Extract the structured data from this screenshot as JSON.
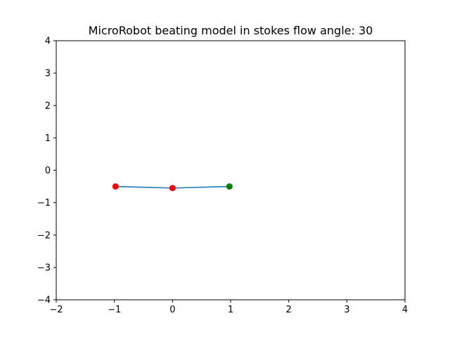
{
  "chart_data": {
    "type": "scatter",
    "title": "MicroRobot beating model in stokes flow angle: 30",
    "xlabel": "",
    "ylabel": "",
    "xlim": [
      -2,
      4
    ],
    "ylim": [
      -4,
      4
    ],
    "xticks": [
      -2,
      -1,
      0,
      1,
      2,
      3,
      4
    ],
    "yticks": [
      -4,
      -3,
      -2,
      -1,
      0,
      1,
      2,
      3,
      4
    ],
    "grid": false,
    "series": [
      {
        "kind": "line",
        "color": "#1f77b4",
        "points": [
          {
            "x": -0.98,
            "y": -0.5
          },
          {
            "x": 0.0,
            "y": -0.55
          },
          {
            "x": 0.98,
            "y": -0.5
          }
        ]
      },
      {
        "kind": "scatter",
        "color": "#ff0000",
        "points": [
          {
            "x": -0.98,
            "y": -0.5
          },
          {
            "x": 0.0,
            "y": -0.55
          }
        ]
      },
      {
        "kind": "scatter",
        "color": "#008000",
        "points": [
          {
            "x": 0.98,
            "y": -0.5
          }
        ]
      }
    ]
  }
}
